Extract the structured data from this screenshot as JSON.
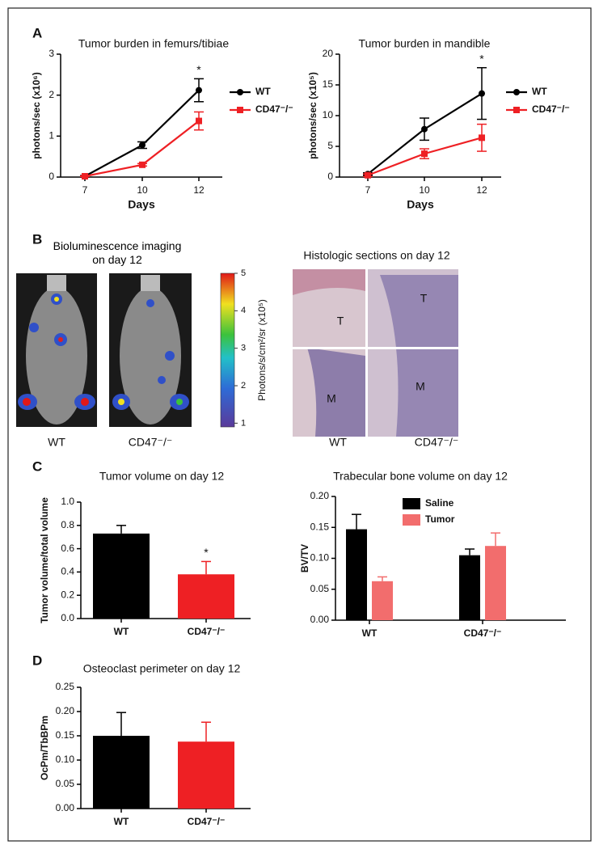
{
  "panel_labels": [
    "A",
    "B",
    "C",
    "D"
  ],
  "chart_data": [
    {
      "type": "line",
      "title": "Tumor burden in femurs/tibiae",
      "ylabel": "photons/sec (x10⁶)",
      "xlabel": "Days",
      "categories": [
        "7",
        "10",
        "12"
      ],
      "ylim": [
        0,
        3
      ],
      "yticks": [
        0,
        1,
        2,
        3
      ],
      "annotations": [
        "*"
      ],
      "series": [
        {
          "name": "WT",
          "color": "#000000",
          "marker": "circle",
          "values": [
            0.02,
            0.78,
            2.12
          ],
          "errors": [
            0.02,
            0.08,
            0.28
          ]
        },
        {
          "name": "CD47⁻/⁻",
          "color": "#ee2024",
          "marker": "square",
          "values": [
            0.02,
            0.3,
            1.37
          ],
          "errors": [
            0.01,
            0.03,
            0.22
          ]
        }
      ]
    },
    {
      "type": "line",
      "title": "Tumor burden in mandible",
      "ylabel": "photons/sec (x10⁵)",
      "xlabel": "Days",
      "categories": [
        "7",
        "10",
        "12"
      ],
      "ylim": [
        0,
        20
      ],
      "yticks": [
        0,
        5,
        10,
        15,
        20
      ],
      "annotations": [
        "*"
      ],
      "series": [
        {
          "name": "WT",
          "color": "#000000",
          "marker": "circle",
          "values": [
            0.5,
            7.8,
            13.6
          ],
          "errors": [
            0.2,
            1.8,
            4.2
          ]
        },
        {
          "name": "CD47⁻/⁻",
          "color": "#ee2024",
          "marker": "square",
          "values": [
            0.3,
            3.8,
            6.4
          ],
          "errors": [
            0.2,
            0.8,
            2.2
          ]
        }
      ]
    },
    {
      "type": "bar",
      "title": "Tumor volume on day 12",
      "ylabel": "Tumor volume/total volume",
      "categories": [
        "WT",
        "CD47⁻/⁻"
      ],
      "ylim": [
        0,
        1
      ],
      "yticks": [
        {
          "value": 0,
          "label": "0.0"
        },
        0.2,
        0.4,
        0.6,
        0.8,
        {
          "value": 1,
          "label": "1.0"
        }
      ],
      "annotations": [
        "*"
      ],
      "series": [
        {
          "colors": [
            "#000000",
            "#ee2024"
          ],
          "values": [
            0.73,
            0.38
          ],
          "errors": [
            0.07,
            0.11
          ]
        }
      ]
    },
    {
      "type": "bar",
      "title": "Trabecular bone volume on day 12",
      "ylabel": "BV/TV",
      "categories": [
        "WT",
        "CD47⁻/⁻"
      ],
      "ylim": [
        0,
        0.2
      ],
      "yticks": [
        {
          "value": 0,
          "label": "0.00"
        },
        0.05,
        {
          "value": 0.1,
          "label": "0.10"
        },
        0.15,
        {
          "value": 0.2,
          "label": "0.20"
        }
      ],
      "series": [
        {
          "name": "Saline",
          "color": "#000000",
          "values": [
            0.147,
            0.105
          ],
          "errors": [
            0.024,
            0.01
          ]
        },
        {
          "name": "Tumor",
          "color": "#f26d6d",
          "values": [
            0.063,
            0.12
          ],
          "errors": [
            0.007,
            0.021
          ]
        }
      ]
    },
    {
      "type": "bar",
      "title": "Osteoclast perimeter on day 12",
      "ylabel": "OcPm/TbBPm",
      "categories": [
        "WT",
        "CD47⁻/⁻"
      ],
      "ylim": [
        0,
        0.25
      ],
      "yticks": [
        {
          "value": 0,
          "label": "0.00"
        },
        0.05,
        {
          "value": 0.1,
          "label": "0.10"
        },
        0.15,
        {
          "value": 0.2,
          "label": "0.20"
        },
        0.25
      ],
      "series": [
        {
          "colors": [
            "#000000",
            "#ee2024"
          ],
          "values": [
            0.15,
            0.138
          ],
          "errors": [
            0.048,
            0.04
          ]
        }
      ]
    }
  ],
  "imaging": {
    "bioluminescence": {
      "title": "Bioluminescence imaging on day 12",
      "labels": [
        "WT",
        "CD47⁻/⁻"
      ],
      "colorbar": {
        "label": "Photons/s/cm²/sr (x10⁵)",
        "lim": [
          0.9,
          5
        ],
        "ticks": [
          1,
          2,
          3,
          4,
          5
        ]
      }
    },
    "histology": {
      "title": "Histologic sections on day 12",
      "regions": [
        "T",
        "T",
        "M",
        "M"
      ],
      "labels": [
        "WT",
        "CD47⁻/⁻"
      ]
    }
  }
}
